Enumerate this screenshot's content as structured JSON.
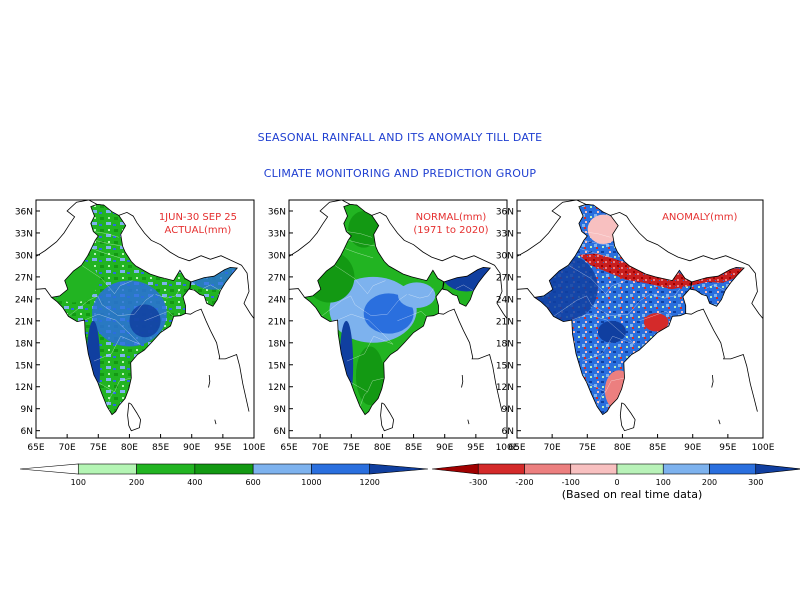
{
  "titles": {
    "main": "SEASONAL RAINFALL AND ITS ANOMALY TILL DATE",
    "group": "CLIMATE MONITORING AND PREDICTION GROUP"
  },
  "axes": {
    "lat_labels": [
      "36N",
      "33N",
      "30N",
      "27N",
      "24N",
      "21N",
      "18N",
      "15N",
      "12N",
      "9N",
      "6N"
    ],
    "lat_values": [
      36,
      33,
      30,
      27,
      24,
      21,
      18,
      15,
      12,
      9,
      6
    ],
    "lon_labels": [
      "65E",
      "70E",
      "75E",
      "80E",
      "85E",
      "90E",
      "95E",
      "100E"
    ],
    "lon_values": [
      65,
      70,
      75,
      80,
      85,
      90,
      95,
      100
    ],
    "lat_range": [
      5,
      37.5
    ],
    "lon_range": [
      65,
      100
    ]
  },
  "panels": [
    {
      "id": "actual",
      "labels": [
        "1JUN-30 SEP 25",
        "ACTUAL(mm)"
      ],
      "style": "actual"
    },
    {
      "id": "normal",
      "labels": [
        "NORMAL(mm)",
        "(1971 to 2020)"
      ],
      "style": "normal"
    },
    {
      "id": "anomaly",
      "labels": [
        "ANOMALY(mm)"
      ],
      "style": "anomaly"
    }
  ],
  "legend_rainfall": {
    "colors": [
      "#ffffff",
      "#b4f5b4",
      "#22b422",
      "#139913",
      "#7db2ee",
      "#2a6fde",
      "#103fa0"
    ],
    "ticks": [
      "100",
      "200",
      "400",
      "600",
      "1000",
      "1200"
    ]
  },
  "legend_anomaly": {
    "colors": [
      "#a00000",
      "#d42a2a",
      "#ec7f7f",
      "#f8c0c0",
      "#b8f2b8",
      "#7db2ee",
      "#2a6fde",
      "#103fa0"
    ],
    "ticks": [
      "-300",
      "-200",
      "-100",
      "0",
      "100",
      "200",
      "300"
    ],
    "note": "(Based on real time data)"
  },
  "colors": {
    "title": "#1f3fd1",
    "panel_label": "#e53030"
  }
}
